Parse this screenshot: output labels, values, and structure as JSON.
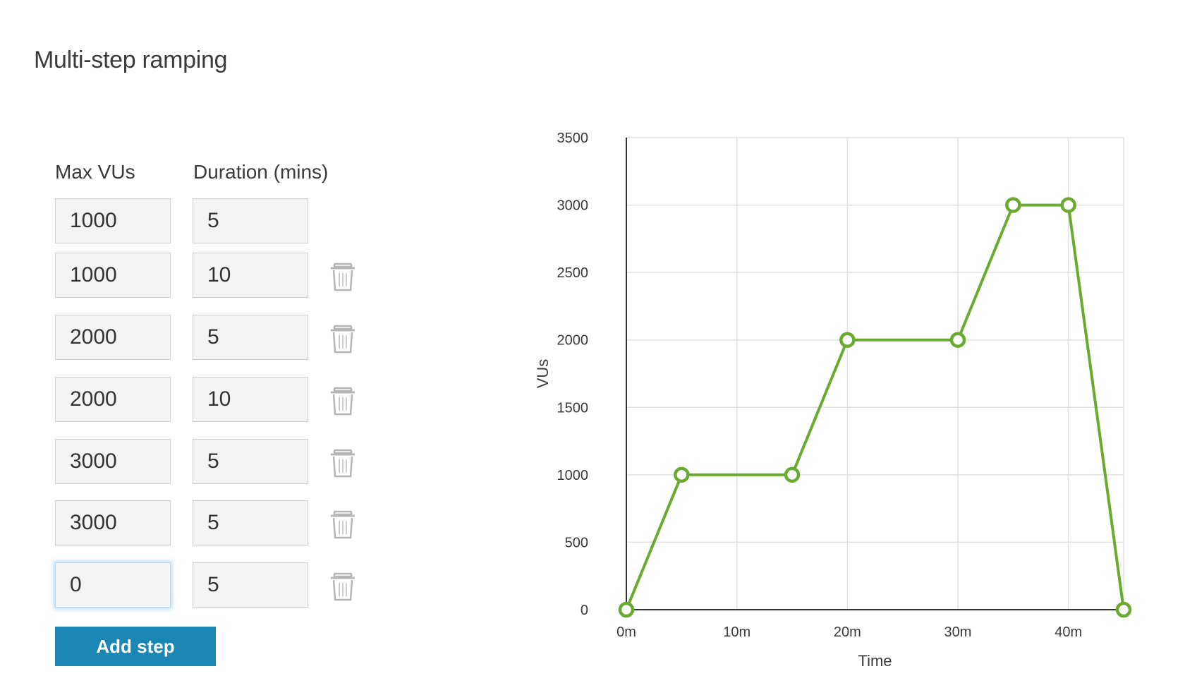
{
  "page": {
    "title": "Multi-step ramping"
  },
  "form": {
    "col_max_vus": "Max VUs",
    "col_duration": "Duration (mins)",
    "steps": [
      {
        "vus": "1000",
        "duration": "5"
      },
      {
        "vus": "1000",
        "duration": "10"
      },
      {
        "vus": "2000",
        "duration": "5"
      },
      {
        "vus": "2000",
        "duration": "10"
      },
      {
        "vus": "3000",
        "duration": "5"
      },
      {
        "vus": "3000",
        "duration": "5"
      },
      {
        "vus": "0",
        "duration": "5"
      }
    ],
    "add_step_label": "Add step",
    "delete_icon": "trash-icon"
  },
  "colors": {
    "accent": "#1a87b5",
    "series": "#6aaa2f",
    "grid": "#e2e2e2",
    "axis": "#333333"
  },
  "chart_data": {
    "type": "line",
    "title": "",
    "xlabel": "Time",
    "ylabel": "VUs",
    "xlim": [
      0,
      45
    ],
    "ylim": [
      0,
      3500
    ],
    "x_ticks": [
      0,
      10,
      20,
      30,
      40
    ],
    "x_tick_labels": [
      "0m",
      "10m",
      "20m",
      "30m",
      "40m"
    ],
    "y_ticks": [
      0,
      500,
      1000,
      1500,
      2000,
      2500,
      3000,
      3500
    ],
    "y_tick_labels": [
      "0",
      "500",
      "1000",
      "1500",
      "2000",
      "2500",
      "3000",
      "3500"
    ],
    "series": [
      {
        "name": "VUs",
        "x": [
          0,
          5,
          15,
          20,
          30,
          35,
          40,
          45
        ],
        "y": [
          0,
          1000,
          1000,
          2000,
          2000,
          3000,
          3000,
          0
        ]
      }
    ]
  }
}
